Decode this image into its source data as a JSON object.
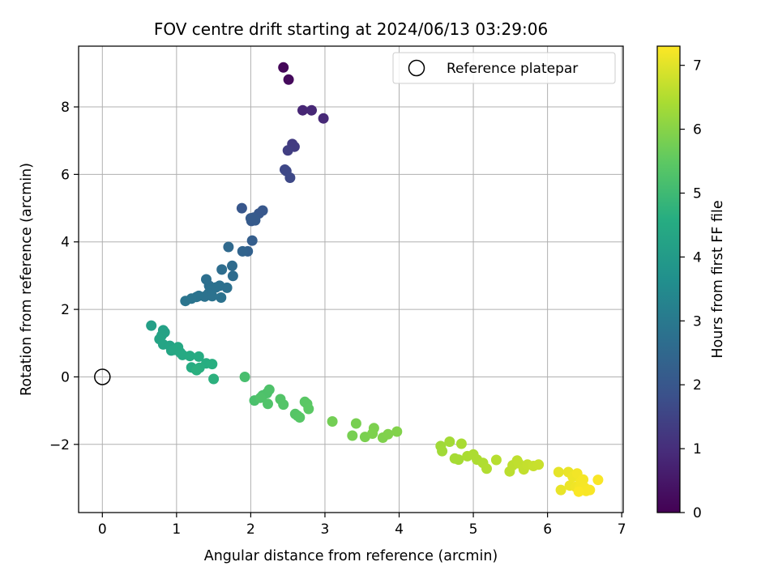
{
  "chart_data": {
    "type": "scatter",
    "title": "FOV centre drift starting at 2024/06/13 03:29:06",
    "xlabel": "Angular distance from reference (arcmin)",
    "ylabel": "Rotation from reference (arcmin)",
    "xlim": [
      -0.32,
      7.02
    ],
    "ylim": [
      -4.02,
      9.8
    ],
    "xticks": [
      0,
      1,
      2,
      3,
      4,
      5,
      6,
      7
    ],
    "yticks": [
      -2,
      0,
      2,
      4,
      6,
      8
    ],
    "grid": true,
    "legend": {
      "location": "upper right",
      "entries": [
        "Reference platepar"
      ]
    },
    "reference_point": {
      "name": "Reference platepar",
      "x": 0,
      "y": 0
    },
    "colorbar": {
      "label": "Hours from first FF file",
      "colormap": "viridis",
      "range": [
        0,
        7.3
      ],
      "ticks": [
        0,
        1,
        2,
        3,
        4,
        5,
        6,
        7
      ]
    },
    "series": [
      {
        "x": [
          2.44,
          2.51,
          2.7,
          2.82,
          2.98,
          2.56,
          2.59,
          2.5,
          2.46,
          2.48,
          2.53,
          1.88,
          2.16,
          2.11,
          2.04,
          2.01,
          2.06,
          2.0,
          2.02,
          1.96,
          1.89,
          1.7,
          1.75,
          1.76,
          1.61,
          1.44,
          1.4,
          1.68,
          1.58,
          1.53,
          1.47,
          1.43,
          1.38,
          1.48,
          1.6,
          1.3,
          1.27,
          1.2,
          1.12,
          0.66,
          0.82,
          0.84,
          0.8,
          0.77,
          0.82,
          0.91,
          0.93,
          0.97,
          1.02,
          1.05,
          1.08,
          1.18,
          1.3,
          1.2,
          1.26,
          1.4,
          1.48,
          1.31,
          1.27,
          1.5,
          1.92,
          2.05,
          2.16,
          2.22,
          2.25,
          2.13,
          2.23,
          2.4,
          2.44,
          2.6,
          2.63,
          2.66,
          2.73,
          2.76,
          2.78,
          3.1,
          3.37,
          3.42,
          3.54,
          3.66,
          3.64,
          3.78,
          3.85,
          3.97,
          4.56,
          4.58,
          4.68,
          4.8,
          4.75,
          4.84,
          4.92,
          5.0,
          5.05,
          5.13,
          5.18,
          5.31,
          5.49,
          5.53,
          5.59,
          5.61,
          5.68,
          5.73,
          5.81,
          5.88,
          6.15,
          6.18,
          6.28,
          6.3,
          6.34,
          6.38,
          6.4,
          6.43,
          6.45,
          6.48,
          6.5,
          6.52,
          6.57,
          6.68,
          6.42
        ],
        "y": [
          9.17,
          8.81,
          7.9,
          7.9,
          7.66,
          6.9,
          6.82,
          6.71,
          6.14,
          6.1,
          5.9,
          5.0,
          4.93,
          4.84,
          4.72,
          4.62,
          4.64,
          4.7,
          4.04,
          3.72,
          3.72,
          3.85,
          3.29,
          2.99,
          3.18,
          2.7,
          2.89,
          2.64,
          2.7,
          2.65,
          2.56,
          2.47,
          2.38,
          2.39,
          2.35,
          2.4,
          2.37,
          2.32,
          2.25,
          1.52,
          1.38,
          1.32,
          1.23,
          1.12,
          0.96,
          0.92,
          0.78,
          0.8,
          0.88,
          0.72,
          0.65,
          0.62,
          0.6,
          0.28,
          0.22,
          0.4,
          0.38,
          0.27,
          0.2,
          -0.06,
          0.0,
          -0.7,
          -0.55,
          -0.48,
          -0.38,
          -0.62,
          -0.8,
          -0.66,
          -0.82,
          -1.1,
          -1.15,
          -1.2,
          -0.74,
          -0.8,
          -0.95,
          -1.32,
          -1.74,
          -1.38,
          -1.78,
          -1.52,
          -1.68,
          -1.8,
          -1.7,
          -1.62,
          -2.05,
          -2.2,
          -1.92,
          -2.45,
          -2.42,
          -1.98,
          -2.35,
          -2.3,
          -2.45,
          -2.55,
          -2.72,
          -2.46,
          -2.8,
          -2.62,
          -2.48,
          -2.56,
          -2.74,
          -2.6,
          -2.64,
          -2.6,
          -2.82,
          -3.35,
          -2.82,
          -3.22,
          -2.96,
          -3.26,
          -2.86,
          -3.3,
          -3.1,
          -3.04,
          -3.28,
          -3.38,
          -3.35,
          -3.05,
          -3.4
        ],
        "t": [
          0.1,
          0.2,
          0.82,
          0.85,
          0.88,
          1.3,
          1.32,
          1.38,
          1.6,
          1.62,
          1.63,
          2.0,
          2.02,
          2.04,
          2.08,
          2.1,
          2.11,
          2.12,
          2.2,
          2.3,
          2.4,
          2.55,
          2.6,
          2.62,
          2.65,
          2.7,
          2.72,
          2.73,
          2.75,
          2.76,
          2.77,
          2.78,
          2.79,
          2.8,
          2.81,
          2.83,
          2.84,
          2.86,
          2.88,
          4.15,
          4.2,
          4.22,
          4.25,
          4.28,
          4.3,
          4.32,
          4.35,
          4.4,
          4.42,
          4.44,
          4.46,
          4.5,
          4.52,
          4.55,
          4.57,
          4.6,
          4.62,
          4.64,
          4.66,
          4.7,
          5.15,
          5.2,
          5.22,
          5.24,
          5.26,
          5.28,
          5.3,
          5.32,
          5.34,
          5.36,
          5.38,
          5.4,
          5.42,
          5.44,
          5.46,
          5.75,
          5.8,
          5.82,
          5.84,
          5.86,
          5.88,
          5.9,
          5.92,
          5.94,
          6.3,
          6.32,
          6.34,
          6.36,
          6.38,
          6.4,
          6.42,
          6.44,
          6.46,
          6.48,
          6.5,
          6.55,
          6.6,
          6.62,
          6.64,
          6.66,
          6.68,
          6.7,
          6.72,
          6.74,
          7.05,
          7.08,
          7.1,
          7.12,
          7.14,
          7.16,
          7.18,
          7.2,
          7.21,
          7.22,
          7.23,
          7.24,
          7.25,
          7.26,
          7.27
        ]
      }
    ]
  }
}
